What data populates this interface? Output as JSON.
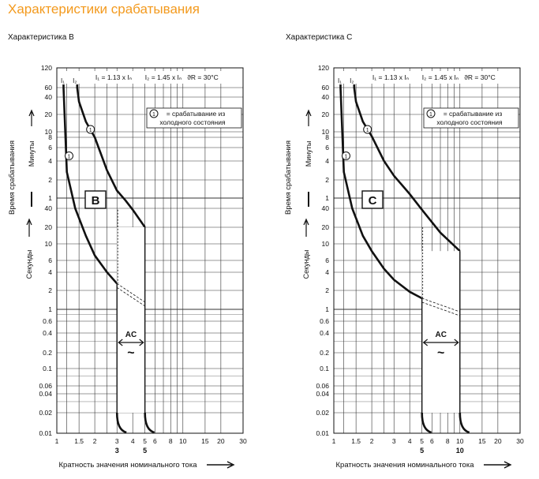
{
  "page": {
    "title": "Характеристики срабатывания",
    "accent_color": "#f39a1e",
    "shared_ylabel_minutes": "Минуты",
    "shared_ylabel_seconds": "Секунды",
    "shared_ylabel_main": "Время срабатывания"
  },
  "chart_data": [
    {
      "type": "line",
      "title": "Характеристика B",
      "curve_letter": "B",
      "xlabel": "Кратность значения номинального тока",
      "x_scale": "log",
      "xlim": [
        1,
        30
      ],
      "x_ticks": [
        "1",
        "1.5",
        "2",
        "3",
        "4",
        "5",
        "6",
        "8",
        "10",
        "15",
        "20",
        "30"
      ],
      "x_bold_ticks": [
        "3",
        "5"
      ],
      "y_scale": "log",
      "y_ticks_minutes": [
        "120",
        "60",
        "40",
        "20",
        "10",
        "8",
        "6",
        "4",
        "2",
        "1"
      ],
      "y_ticks_seconds": [
        "40",
        "20",
        "10",
        "6",
        "4",
        "2",
        "1",
        "0.6",
        "0.4",
        "0.2",
        "0.1",
        "0.06",
        "0.04",
        "0.02",
        "0.01"
      ],
      "annotations": {
        "i1_label": "I₁",
        "i2_label": "I₂",
        "i1_text": "I₁ = 1.13 x Iₙ",
        "i2_text": "I₂ = 1.45 x Iₙ",
        "temp_text": "ϑR = 30°C",
        "legend_marker": "1",
        "legend_text_1": "= срабатывание из",
        "legend_text_2": "холодного состояния",
        "ac_label": "AC",
        "ac_symbol": "~"
      },
      "magnetic_zone": [
        3,
        5
      ],
      "series": [
        {
          "role": "upper",
          "x": [
            1.45,
            1.5,
            1.7,
            2.0,
            2.5,
            3.0,
            3.5,
            4.0,
            5.0
          ],
          "y": [
            3600,
            2000,
            900,
            480,
            170,
            80,
            55,
            38,
            20
          ]
        },
        {
          "role": "lower",
          "x": [
            1.13,
            1.2,
            1.4,
            1.7,
            2.0,
            2.5,
            3.0
          ],
          "y": [
            3600,
            160,
            40,
            14,
            7,
            4,
            2.6
          ]
        },
        {
          "role": "magnetic-dashed",
          "x": [
            3,
            5
          ],
          "y": [
            2.6,
            1.3
          ]
        }
      ]
    },
    {
      "type": "line",
      "title": "Характеристика C",
      "curve_letter": "C",
      "xlabel": "Кратность значения номинального тока",
      "x_scale": "log",
      "xlim": [
        1,
        30
      ],
      "x_ticks": [
        "1",
        "1.5",
        "2",
        "3",
        "4",
        "5",
        "6",
        "8",
        "10",
        "15",
        "20",
        "30"
      ],
      "x_bold_ticks": [
        "5",
        "10"
      ],
      "y_scale": "log",
      "y_ticks_minutes": [
        "120",
        "60",
        "40",
        "20",
        "10",
        "8",
        "6",
        "4",
        "2",
        "1"
      ],
      "y_ticks_seconds": [
        "40",
        "20",
        "10",
        "6",
        "4",
        "2",
        "1",
        "0.6",
        "0.4",
        "0.2",
        "0.1",
        "0.06",
        "0.04",
        "0.02",
        "0.01"
      ],
      "annotations": {
        "i1_label": "I₁",
        "i2_label": "I₂",
        "i1_text": "I₁ = 1.13 x Iₙ",
        "i2_text": "I₂ = 1.45 x Iₙ",
        "temp_text": "ϑR = 30°C",
        "legend_marker": "1",
        "legend_text_1": "= срабатывание из",
        "legend_text_2": "холодного состояния",
        "ac_label": "AC",
        "ac_symbol": "~"
      },
      "magnetic_zone": [
        5,
        10
      ],
      "series": [
        {
          "role": "upper",
          "x": [
            1.45,
            1.5,
            1.7,
            2.0,
            2.5,
            3.0,
            4.0,
            5.0,
            7.0,
            10.0
          ],
          "y": [
            3600,
            2000,
            900,
            500,
            240,
            140,
            70,
            38,
            16,
            8
          ]
        },
        {
          "role": "lower",
          "x": [
            1.13,
            1.2,
            1.4,
            1.7,
            2.0,
            2.5,
            3.0,
            4.0,
            5.0
          ],
          "y": [
            3600,
            160,
            40,
            14,
            8,
            4.5,
            3,
            1.9,
            1.5
          ]
        },
        {
          "role": "magnetic-dashed",
          "x": [
            5,
            10
          ],
          "y": [
            1.5,
            0.9
          ]
        }
      ]
    }
  ]
}
